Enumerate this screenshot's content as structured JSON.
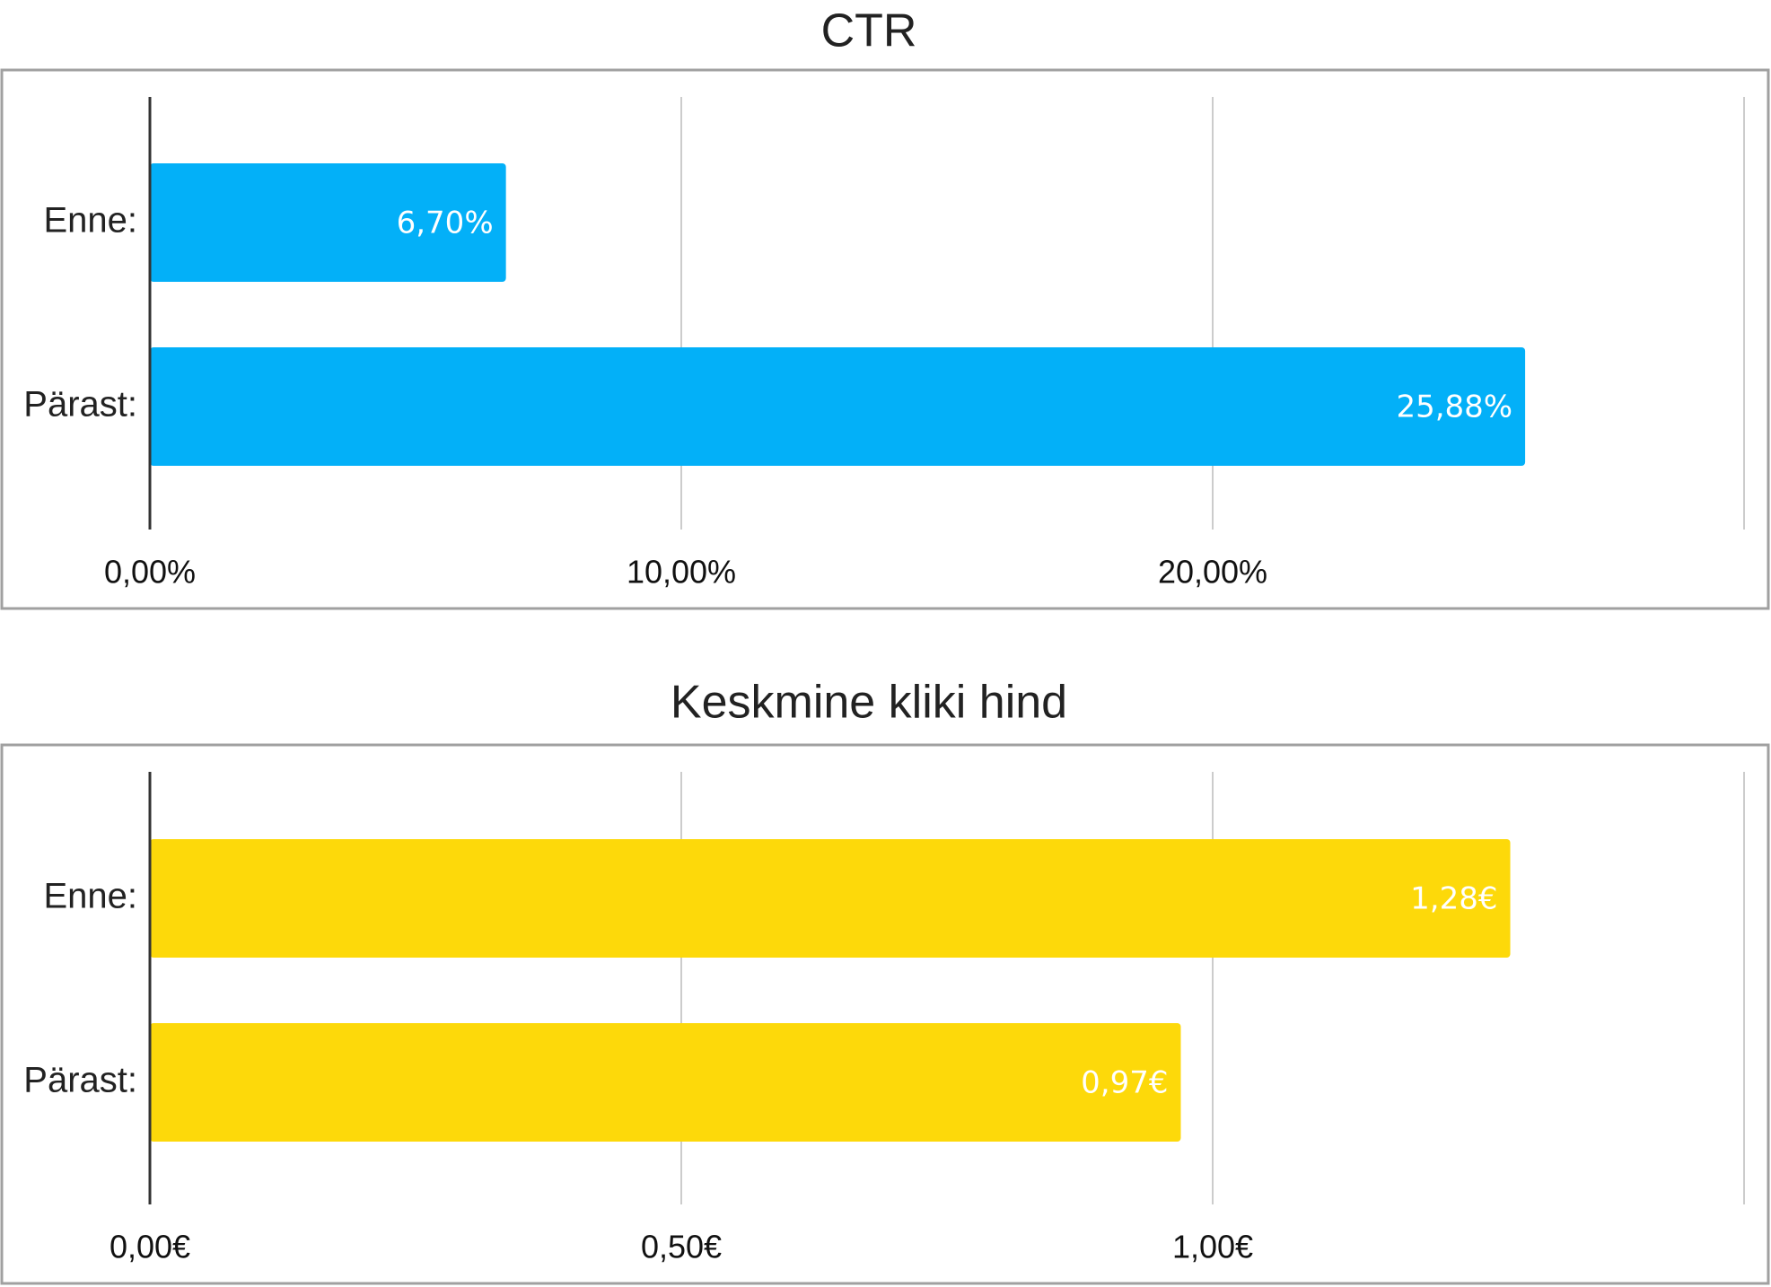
{
  "chart_data": [
    {
      "type": "bar",
      "orientation": "horizontal",
      "title": "CTR",
      "categories": [
        "Enne:",
        "Pärast:"
      ],
      "values": [
        6.7,
        25.88
      ],
      "value_labels": [
        "6,70%",
        "25,88%"
      ],
      "xlim": [
        0,
        30
      ],
      "ticks": [
        0,
        10,
        20
      ],
      "tick_labels": [
        "0,00%",
        "10,00%",
        "20,00%"
      ],
      "xlabel": "",
      "ylabel": "",
      "grid": true,
      "legend": "none",
      "color": "#03b0f8"
    },
    {
      "type": "bar",
      "orientation": "horizontal",
      "title": "Keskmine kliki hind",
      "categories": [
        "Enne:",
        "Pärast:"
      ],
      "values": [
        1.28,
        0.97
      ],
      "value_labels": [
        "1,28€",
        "0,97€"
      ],
      "xlim": [
        0,
        1.5
      ],
      "ticks": [
        0,
        0.5,
        1.0
      ],
      "tick_labels": [
        "0,00€",
        "0,50€",
        "1,00€"
      ],
      "xlabel": "",
      "ylabel": "",
      "grid": true,
      "legend": "none",
      "color": "#fdd90a"
    }
  ]
}
